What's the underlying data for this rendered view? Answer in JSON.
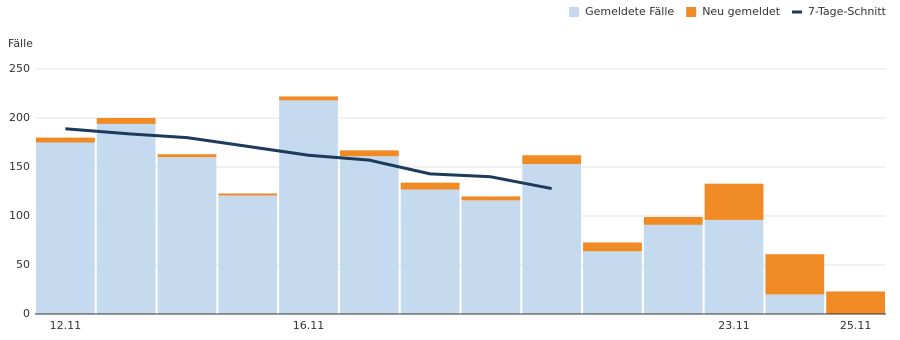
{
  "chart_data": {
    "type": "bar",
    "stacked": true,
    "y_label": "Fälle",
    "categories": [
      "12.11",
      null,
      null,
      null,
      "16.11",
      null,
      null,
      null,
      null,
      null,
      null,
      "23.11",
      null,
      "25.11"
    ],
    "series": [
      {
        "name": "Gemeldete Fälle",
        "color": "#c5d9ef",
        "values": [
          175,
          194,
          160,
          121,
          218,
          161,
          127,
          116,
          153,
          64,
          91,
          96,
          20,
          0
        ]
      },
      {
        "name": "Neu gemeldet",
        "color": "#f08a24",
        "values": [
          5,
          6,
          3,
          2,
          4,
          6,
          7,
          4,
          9,
          9,
          8,
          37,
          41,
          23
        ]
      },
      {
        "name": "7-Tage-Schnitt",
        "color": "#1b3a5c",
        "type": "line",
        "values": [
          189,
          184,
          180,
          171,
          162,
          157,
          143,
          140,
          128,
          null,
          null,
          null,
          null,
          null
        ]
      }
    ],
    "ylim": [
      0,
      250
    ],
    "yticks": [
      0,
      50,
      100,
      150,
      200,
      250
    ],
    "grid": true,
    "legend": "top-right"
  }
}
